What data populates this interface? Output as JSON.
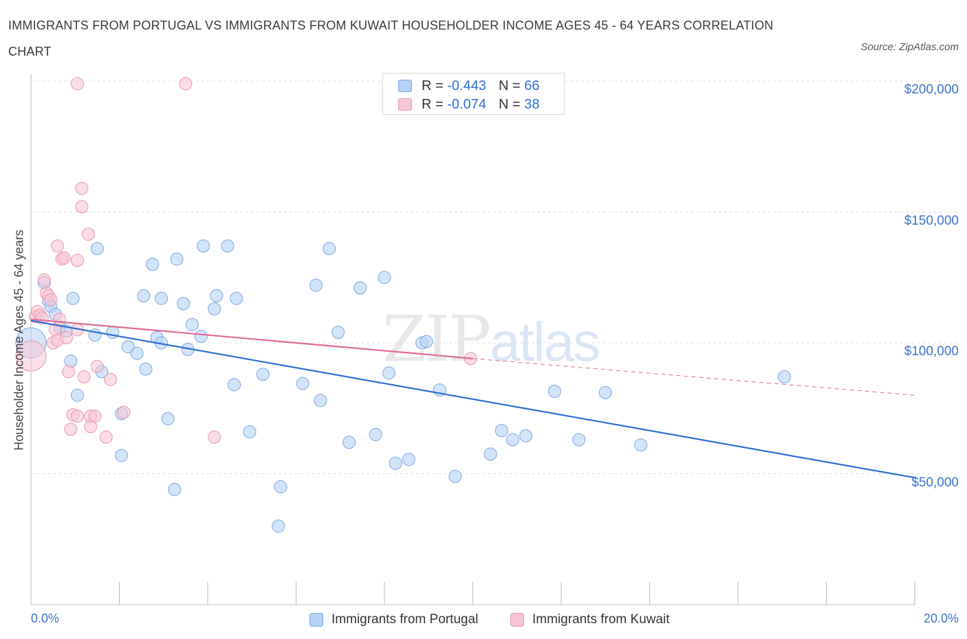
{
  "title": "IMMIGRANTS FROM PORTUGAL VS IMMIGRANTS FROM KUWAIT HOUSEHOLDER INCOME AGES 45 - 64 YEARS CORRELATION CHART",
  "source": "Source: ZipAtlas.com",
  "watermark": {
    "zip": "ZIP",
    "atlas": "atlas"
  },
  "legend_top": {
    "rows": [
      {
        "r_label": "R = ",
        "r_value": "-0.443",
        "n_label": "N = ",
        "n_value": "66"
      },
      {
        "r_label": "R = ",
        "r_value": "-0.074",
        "n_label": "N = ",
        "n_value": "38"
      }
    ]
  },
  "colors": {
    "portugal_fill": "#b8d2f4",
    "portugal_stroke": "#7ba7e0",
    "portugal_line": "#2d6fd0",
    "kuwait_fill": "#f7c6d4",
    "kuwait_stroke": "#e996b0",
    "kuwait_line": "#e06a92",
    "axis_text": "#3b73c8",
    "grid": "#dddddd"
  },
  "chart_data": {
    "type": "scatter",
    "title": "IMMIGRANTS FROM PORTUGAL VS IMMIGRANTS FROM KUWAIT HOUSEHOLDER INCOME AGES 45 - 64 YEARS CORRELATION CHART",
    "xlabel": "",
    "ylabel": "Householder Income Ages 45 - 64 years",
    "xlim": [
      0,
      20
    ],
    "ylim": [
      0,
      200000
    ],
    "x_tick_labels": [
      "0.0%",
      "20.0%"
    ],
    "y_tick_labels": [
      "$50,000",
      "$100,000",
      "$150,000",
      "$200,000"
    ],
    "y_ticks": [
      50000,
      100000,
      150000,
      200000
    ],
    "grid": true,
    "legend_position": "bottom",
    "series": [
      {
        "name": "Immigrants from Portugal",
        "r": -0.443,
        "n": 66,
        "trend": [
          [
            0.0,
            108500
          ],
          [
            20.0,
            48500
          ]
        ],
        "points": [
          [
            0.0,
            100000
          ],
          [
            0.3,
            123000
          ],
          [
            0.4,
            116000
          ],
          [
            0.45,
            114000
          ],
          [
            0.55,
            111000
          ],
          [
            0.65,
            106000
          ],
          [
            0.8,
            104500
          ],
          [
            0.9,
            93000
          ],
          [
            0.95,
            117000
          ],
          [
            1.05,
            80000
          ],
          [
            1.5,
            136000
          ],
          [
            1.6,
            89000
          ],
          [
            1.45,
            103000
          ],
          [
            1.85,
            104000
          ],
          [
            2.05,
            73000
          ],
          [
            2.05,
            57000
          ],
          [
            2.2,
            98500
          ],
          [
            2.4,
            96000
          ],
          [
            2.55,
            118000
          ],
          [
            2.6,
            90000
          ],
          [
            2.75,
            130000
          ],
          [
            2.85,
            102000
          ],
          [
            2.95,
            117000
          ],
          [
            3.1,
            71000
          ],
          [
            3.25,
            44000
          ],
          [
            3.3,
            132000
          ],
          [
            3.45,
            115000
          ],
          [
            3.55,
            97500
          ],
          [
            3.65,
            107000
          ],
          [
            3.85,
            102500
          ],
          [
            3.9,
            137000
          ],
          [
            4.15,
            113000
          ],
          [
            4.2,
            118000
          ],
          [
            4.45,
            137000
          ],
          [
            4.6,
            84000
          ],
          [
            4.65,
            117000
          ],
          [
            4.95,
            66000
          ],
          [
            5.25,
            88000
          ],
          [
            5.6,
            30000
          ],
          [
            5.65,
            45000
          ],
          [
            6.15,
            84500
          ],
          [
            6.45,
            122000
          ],
          [
            6.55,
            78000
          ],
          [
            6.75,
            136000
          ],
          [
            6.95,
            104000
          ],
          [
            7.2,
            62000
          ],
          [
            7.45,
            121000
          ],
          [
            7.8,
            65000
          ],
          [
            8.0,
            125000
          ],
          [
            8.1,
            88500
          ],
          [
            8.25,
            54000
          ],
          [
            8.55,
            55500
          ],
          [
            8.85,
            100000
          ],
          [
            8.95,
            100500
          ],
          [
            9.25,
            82000
          ],
          [
            9.6,
            49000
          ],
          [
            10.4,
            57500
          ],
          [
            10.65,
            66500
          ],
          [
            10.9,
            63000
          ],
          [
            11.2,
            64500
          ],
          [
            11.85,
            81500
          ],
          [
            12.4,
            63000
          ],
          [
            13.0,
            81000
          ],
          [
            13.8,
            61000
          ],
          [
            17.05,
            87000
          ],
          [
            2.95,
            100000
          ]
        ]
      },
      {
        "name": "Immigrants from Kuwait",
        "r": -0.074,
        "n": 38,
        "trend": [
          [
            0.0,
            109000
          ],
          [
            10.0,
            94000
          ]
        ],
        "trend_extension": [
          [
            10.0,
            94000
          ],
          [
            20.0,
            80000
          ]
        ],
        "points": [
          [
            0.0,
            95000
          ],
          [
            0.1,
            110000
          ],
          [
            0.15,
            112000
          ],
          [
            0.2,
            110500
          ],
          [
            0.25,
            109500
          ],
          [
            0.3,
            124000
          ],
          [
            0.35,
            119000
          ],
          [
            0.4,
            118000
          ],
          [
            0.45,
            116500
          ],
          [
            0.5,
            100000
          ],
          [
            0.55,
            105000
          ],
          [
            0.6,
            101000
          ],
          [
            0.65,
            109000
          ],
          [
            0.6,
            137000
          ],
          [
            0.7,
            132000
          ],
          [
            0.75,
            132500
          ],
          [
            0.8,
            102000
          ],
          [
            0.85,
            89000
          ],
          [
            0.9,
            67000
          ],
          [
            0.95,
            72500
          ],
          [
            1.05,
            72000
          ],
          [
            1.05,
            105000
          ],
          [
            1.05,
            199000
          ],
          [
            1.05,
            131500
          ],
          [
            1.15,
            159000
          ],
          [
            1.15,
            152000
          ],
          [
            1.2,
            87000
          ],
          [
            1.3,
            141500
          ],
          [
            1.35,
            72000
          ],
          [
            1.35,
            68000
          ],
          [
            1.45,
            72000
          ],
          [
            1.5,
            91000
          ],
          [
            1.7,
            64000
          ],
          [
            1.8,
            86000
          ],
          [
            2.1,
            73500
          ],
          [
            3.5,
            199000
          ],
          [
            4.15,
            64000
          ],
          [
            9.95,
            94000
          ]
        ]
      }
    ]
  },
  "bottom_legend": {
    "portugal": "Immigrants from Portugal",
    "kuwait": "Immigrants from Kuwait"
  }
}
